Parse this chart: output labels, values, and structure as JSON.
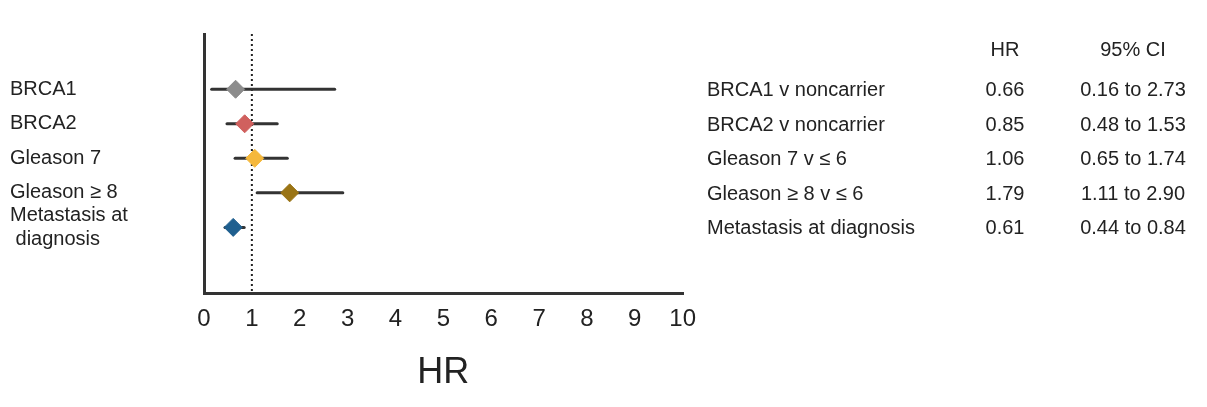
{
  "chart_data": {
    "type": "scatter",
    "orientation": "horizontal",
    "xlabel": "HR",
    "categories": [
      "BRCA1",
      "BRCA2",
      "Gleason 7",
      "Gleason ≥ 8",
      "Metastasis at diagnosis"
    ],
    "values": [
      0.66,
      0.85,
      1.06,
      1.79,
      0.61
    ],
    "errors": [
      [
        0.16,
        2.73
      ],
      [
        0.48,
        1.53
      ],
      [
        0.65,
        1.74
      ],
      [
        1.11,
        2.9
      ],
      [
        0.44,
        0.84
      ]
    ],
    "colors": [
      "#8c8c8c",
      "#d0605e",
      "#f5b83c",
      "#9a7415",
      "#1f5f8f"
    ],
    "marker": "diamond",
    "value_labels": [
      "0.66",
      "0.85",
      "1.06",
      "1.79",
      "0.61"
    ],
    "xlim": [
      0,
      10
    ],
    "xticks": [
      0,
      1,
      2,
      3,
      4,
      5,
      6,
      7,
      8,
      9,
      10
    ],
    "ref_lines": [
      {
        "axis": "x",
        "value": 1,
        "line_style": "dotted",
        "color": "#222222"
      }
    ],
    "annotations": [
      "HR",
      "95% CI",
      "BRCA1 v noncarrier",
      "BRCA2 v noncarrier",
      "Gleason 7 v ≤ 6",
      "Gleason ≥ 8 v ≤ 6",
      "Metastasis at diagnosis",
      "0.16 to 2.73",
      "0.48 to 1.53",
      "0.65 to 1.74",
      "1.11 to 2.90",
      "0.44 to 0.84"
    ],
    "grid": false,
    "legend": false
  }
}
